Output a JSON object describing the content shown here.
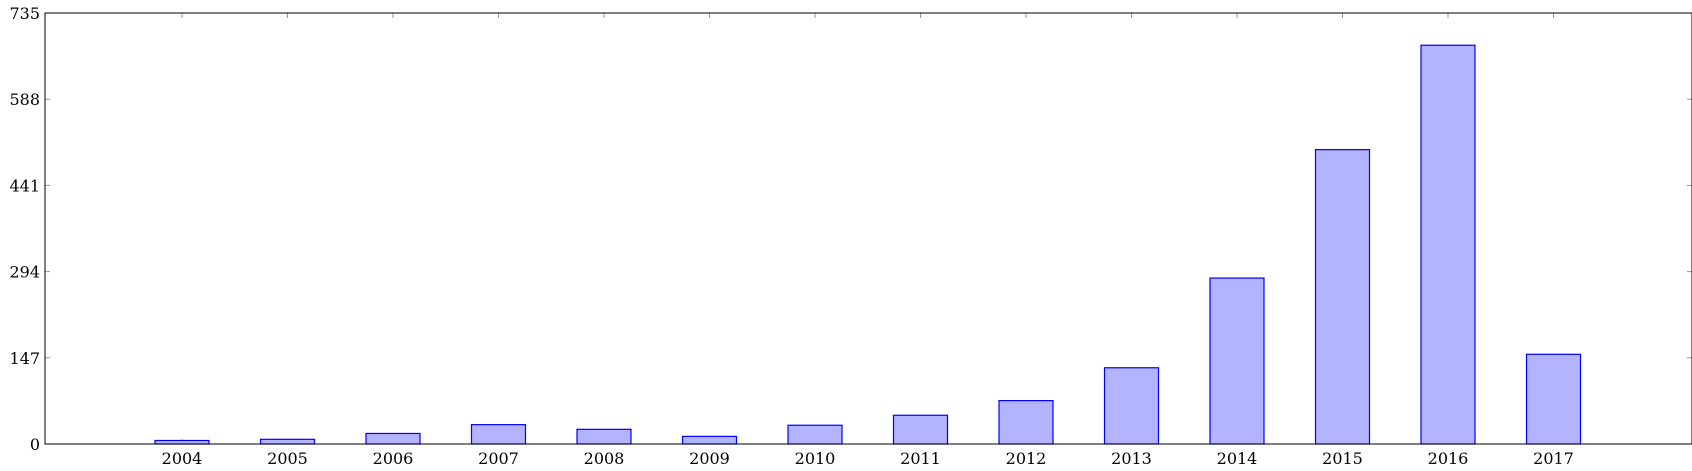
{
  "chart_data": {
    "type": "bar",
    "categories": [
      "2004",
      "2005",
      "2006",
      "2007",
      "2008",
      "2009",
      "2010",
      "2011",
      "2012",
      "2013",
      "2014",
      "2015",
      "2016",
      "2017"
    ],
    "values": [
      6,
      8,
      18,
      33,
      25,
      13,
      32,
      49,
      74,
      130,
      283,
      502,
      680,
      153
    ],
    "xlabel": "",
    "ylabel": "",
    "ylim": [
      0,
      735
    ],
    "yticks": [
      "0",
      "147",
      "294",
      "441",
      "588",
      "735"
    ],
    "grid": false,
    "legend": "none",
    "colors": {
      "bar_fill": "#b3b3ff",
      "bar_stroke": "#0000ff",
      "axis": "#000000"
    }
  }
}
